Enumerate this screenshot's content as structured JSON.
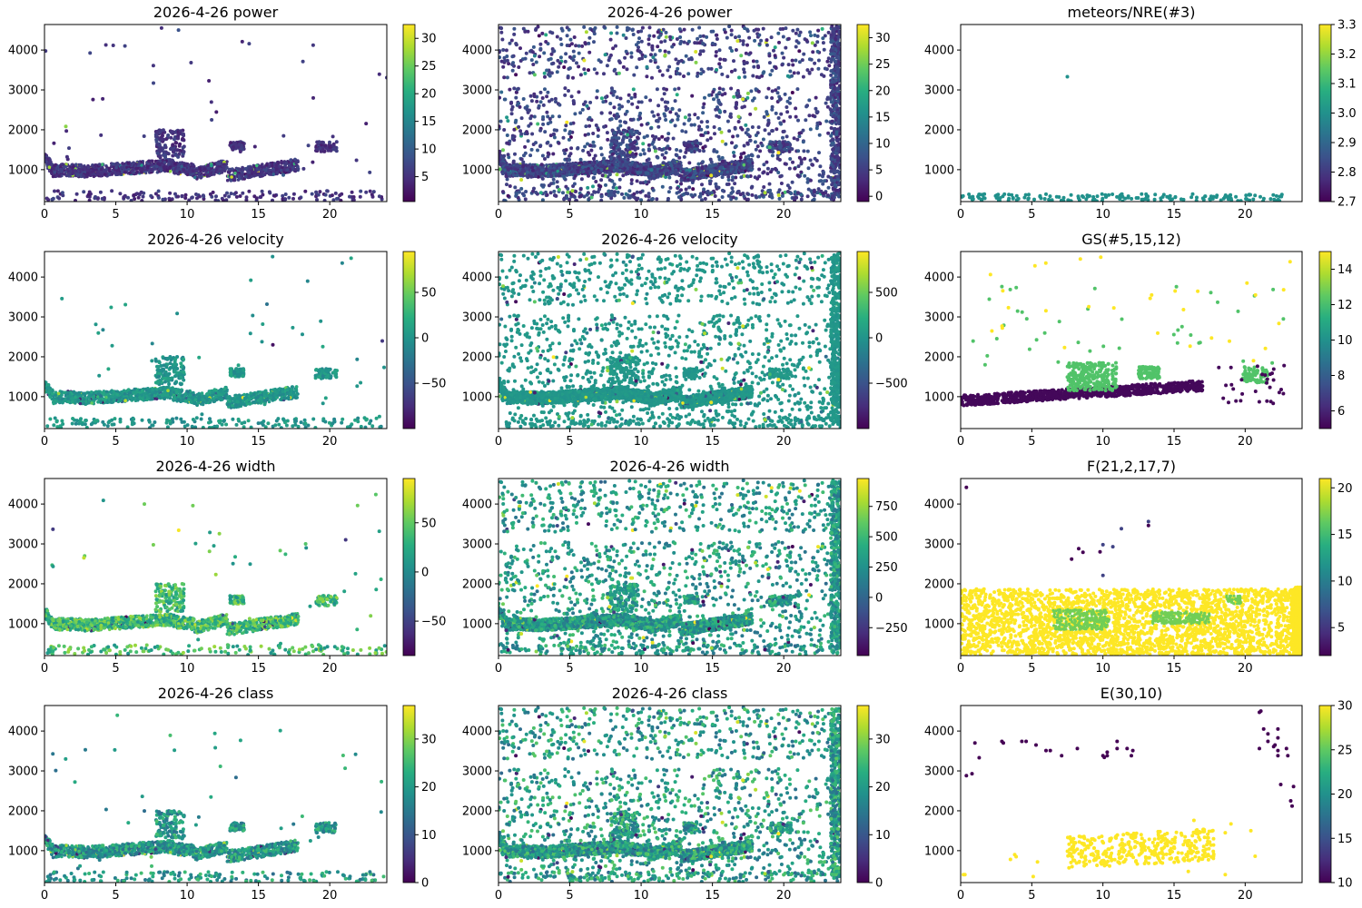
{
  "chart_data": [
    {
      "type": "scatter",
      "title": "2026-4-26 power",
      "xlim": [
        0,
        24
      ],
      "ylim": [
        200,
        4640
      ],
      "xticks": [
        "0",
        "5",
        "10",
        "15",
        "20"
      ],
      "yticks": [
        "1000",
        "2000",
        "3000",
        "4000"
      ],
      "clim": [
        0.5,
        32.5
      ],
      "cticks": [
        "5",
        "10",
        "15",
        "20",
        "25",
        "30"
      ],
      "cbar_values": [
        5,
        10,
        15,
        20,
        25,
        30
      ],
      "style": "sparse",
      "base": [
        0.08,
        0.22
      ]
    },
    {
      "type": "scatter",
      "title": "2026-4-26 power",
      "xlim": [
        0,
        24
      ],
      "ylim": [
        200,
        4640
      ],
      "xticks": [
        "0",
        "5",
        "10",
        "15",
        "20"
      ],
      "yticks": [
        "1000",
        "2000",
        "3000",
        "4000"
      ],
      "clim": [
        -1,
        32.5
      ],
      "cticks": [
        "0",
        "5",
        "10",
        "15",
        "20",
        "25",
        "30"
      ],
      "cbar_values": [
        0,
        5,
        10,
        15,
        20,
        25,
        30
      ],
      "style": "dense",
      "base": [
        0.1,
        0.3
      ]
    },
    {
      "type": "scatter",
      "title": "meteors/NRE(#3)",
      "xlim": [
        0,
        24
      ],
      "ylim": [
        200,
        4640
      ],
      "xticks": [
        "0",
        "5",
        "10",
        "15",
        "20"
      ],
      "yticks": [
        "1000",
        "2000",
        "3000",
        "4000"
      ],
      "clim": [
        2.7,
        3.3
      ],
      "cticks": [
        "2.7",
        "2.8",
        "2.9",
        "3.0",
        "3.1",
        "3.2",
        "3.3"
      ],
      "cbar_values": [
        2.7,
        2.8,
        2.9,
        3.0,
        3.1,
        3.2,
        3.3
      ],
      "style": "meteors",
      "base": [
        0.5,
        0.5
      ]
    },
    {
      "type": "scatter",
      "title": "2026-4-26 velocity",
      "xlim": [
        0,
        24
      ],
      "ylim": [
        200,
        4640
      ],
      "xticks": [
        "0",
        "5",
        "10",
        "15",
        "20"
      ],
      "yticks": [
        "1000",
        "2000",
        "3000",
        "4000"
      ],
      "clim": [
        -100,
        95
      ],
      "cticks": [
        "−50",
        "0",
        "50"
      ],
      "cbar_values": [
        -50,
        0,
        50
      ],
      "style": "sparse",
      "base": [
        0.45,
        0.6
      ]
    },
    {
      "type": "scatter",
      "title": "2026-4-26 velocity",
      "xlim": [
        0,
        24
      ],
      "ylim": [
        200,
        4640
      ],
      "xticks": [
        "0",
        "5",
        "10",
        "15",
        "20"
      ],
      "yticks": [
        "1000",
        "2000",
        "3000",
        "4000"
      ],
      "clim": [
        -1000,
        950
      ],
      "cticks": [
        "−500",
        "0",
        "500"
      ],
      "cbar_values": [
        -500,
        0,
        500
      ],
      "style": "dense",
      "base": [
        0.5,
        0.55
      ]
    },
    {
      "type": "scatter",
      "title": "GS(#5,15,12)",
      "xlim": [
        0,
        24
      ],
      "ylim": [
        200,
        4640
      ],
      "xticks": [
        "0",
        "5",
        "10",
        "15",
        "20"
      ],
      "yticks": [
        "1000",
        "2000",
        "3000",
        "4000"
      ],
      "clim": [
        5,
        15
      ],
      "cticks": [
        "6",
        "8",
        "10",
        "12",
        "14"
      ],
      "cbar_values": [
        6,
        8,
        10,
        12,
        14
      ],
      "style": "gs",
      "base": [
        0,
        0.75
      ]
    },
    {
      "type": "scatter",
      "title": "2026-4-26 width",
      "xlim": [
        0,
        24
      ],
      "ylim": [
        200,
        4640
      ],
      "xticks": [
        "0",
        "5",
        "10",
        "15",
        "20"
      ],
      "yticks": [
        "1000",
        "2000",
        "3000",
        "4000"
      ],
      "clim": [
        -85,
        95
      ],
      "cticks": [
        "−50",
        "0",
        "50"
      ],
      "cbar_values": [
        -50,
        0,
        50
      ],
      "style": "sparse",
      "base": [
        0.5,
        0.85
      ]
    },
    {
      "type": "scatter",
      "title": "2026-4-26 width",
      "xlim": [
        0,
        24
      ],
      "ylim": [
        200,
        4640
      ],
      "xticks": [
        "0",
        "5",
        "10",
        "15",
        "20"
      ],
      "yticks": [
        "1000",
        "2000",
        "3000",
        "4000"
      ],
      "clim": [
        -480,
        980
      ],
      "cticks": [
        "−250",
        "0",
        "250",
        "500",
        "750"
      ],
      "cbar_values": [
        -250,
        0,
        250,
        500,
        750
      ],
      "style": "dense",
      "base": [
        0.38,
        0.7
      ]
    },
    {
      "type": "scatter",
      "title": "F(21,2,17,7)",
      "xlim": [
        0,
        24
      ],
      "ylim": [
        200,
        4640
      ],
      "xticks": [
        "0",
        "5",
        "10",
        "15",
        "20"
      ],
      "yticks": [
        "1000",
        "2000",
        "3000",
        "4000"
      ],
      "clim": [
        2,
        21
      ],
      "cticks": [
        "5",
        "10",
        "15",
        "20"
      ],
      "cbar_values": [
        5,
        10,
        15,
        20
      ],
      "style": "f",
      "base": [
        1,
        0.8
      ]
    },
    {
      "type": "scatter",
      "title": "2026-4-26 class",
      "xlim": [
        0,
        24
      ],
      "ylim": [
        200,
        4640
      ],
      "xticks": [
        "0",
        "5",
        "10",
        "15",
        "20"
      ],
      "yticks": [
        "1000",
        "2000",
        "3000",
        "4000"
      ],
      "clim": [
        0,
        37
      ],
      "cticks": [
        "0",
        "10",
        "20",
        "30"
      ],
      "cbar_values": [
        0,
        10,
        20,
        30
      ],
      "style": "sparse",
      "base": [
        0.35,
        0.7
      ]
    },
    {
      "type": "scatter",
      "title": "2026-4-26 class",
      "xlim": [
        0,
        24
      ],
      "ylim": [
        200,
        4640
      ],
      "xticks": [
        "0",
        "5",
        "10",
        "15",
        "20"
      ],
      "yticks": [
        "1000",
        "2000",
        "3000",
        "4000"
      ],
      "clim": [
        0,
        37
      ],
      "cticks": [
        "0",
        "10",
        "20",
        "30"
      ],
      "cbar_values": [
        0,
        10,
        20,
        30
      ],
      "style": "dense",
      "base": [
        0.35,
        0.75
      ]
    },
    {
      "type": "scatter",
      "title": "E(30,10)",
      "xlim": [
        0,
        24
      ],
      "ylim": [
        200,
        4640
      ],
      "xticks": [
        "0",
        "5",
        "10",
        "15",
        "20"
      ],
      "yticks": [
        "1000",
        "2000",
        "3000",
        "4000"
      ],
      "clim": [
        10,
        30
      ],
      "cticks": [
        "10",
        "15",
        "20",
        "25",
        "30"
      ],
      "cbar_values": [
        10,
        15,
        20,
        25,
        30
      ],
      "style": "e",
      "base": [
        0,
        1
      ]
    }
  ]
}
